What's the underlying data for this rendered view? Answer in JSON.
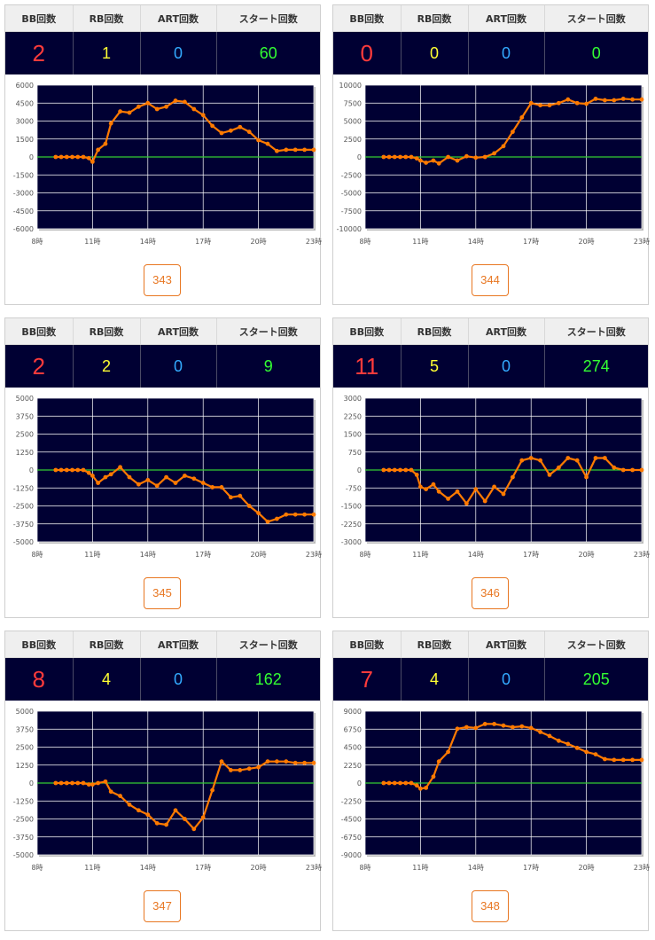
{
  "header": {
    "bb": "BB回数",
    "rb": "RB回数",
    "art": "ART回数",
    "start": "スタート回数"
  },
  "x_tick_labels": [
    "8時",
    "11時",
    "14時",
    "17時",
    "20時",
    "23時"
  ],
  "colors": {
    "plot_bg": "#000033",
    "line": "#ff7a00",
    "zero_line": "#33cc33",
    "grid": "#ffffff"
  },
  "machines": [
    {
      "number": "343",
      "bb": "2",
      "rb": "1",
      "art": "0",
      "start": "60",
      "chart_data": {
        "type": "line",
        "x_range": [
          8,
          23
        ],
        "ylim": [
          -6000,
          6000
        ],
        "y_ticks": [
          6000,
          4500,
          3000,
          1500,
          0,
          -1500,
          -3000,
          -4500,
          -6000
        ],
        "points": [
          [
            9,
            0
          ],
          [
            9.3,
            0
          ],
          [
            9.6,
            0
          ],
          [
            9.9,
            0
          ],
          [
            10.2,
            0
          ],
          [
            10.5,
            0
          ],
          [
            10.8,
            -100
          ],
          [
            11,
            -400
          ],
          [
            11.3,
            600
          ],
          [
            11.7,
            1100
          ],
          [
            12,
            2800
          ],
          [
            12.5,
            3800
          ],
          [
            13,
            3700
          ],
          [
            13.5,
            4200
          ],
          [
            14,
            4500
          ],
          [
            14.5,
            4000
          ],
          [
            15,
            4200
          ],
          [
            15.5,
            4700
          ],
          [
            16,
            4600
          ],
          [
            16.5,
            4000
          ],
          [
            17,
            3500
          ],
          [
            17.5,
            2600
          ],
          [
            18,
            2000
          ],
          [
            18.5,
            2200
          ],
          [
            19,
            2500
          ],
          [
            19.5,
            2100
          ],
          [
            20,
            1400
          ],
          [
            20.5,
            1100
          ],
          [
            21,
            500
          ],
          [
            21.5,
            600
          ],
          [
            22,
            600
          ],
          [
            22.5,
            600
          ],
          [
            23,
            600
          ]
        ]
      }
    },
    {
      "number": "344",
      "bb": "0",
      "rb": "0",
      "art": "0",
      "start": "0",
      "chart_data": {
        "type": "line",
        "x_range": [
          8,
          23
        ],
        "ylim": [
          -10000,
          10000
        ],
        "y_ticks": [
          10000,
          7500,
          5000,
          2500,
          0,
          -2500,
          -5000,
          -7500,
          -10000
        ],
        "points": [
          [
            9,
            0
          ],
          [
            9.3,
            0
          ],
          [
            9.6,
            0
          ],
          [
            9.9,
            0
          ],
          [
            10.2,
            0
          ],
          [
            10.5,
            0
          ],
          [
            10.8,
            -200
          ],
          [
            11,
            -500
          ],
          [
            11.3,
            -800
          ],
          [
            11.7,
            -500
          ],
          [
            12,
            -900
          ],
          [
            12.5,
            0
          ],
          [
            13,
            -500
          ],
          [
            13.5,
            100
          ],
          [
            14,
            -100
          ],
          [
            14.5,
            0
          ],
          [
            15,
            500
          ],
          [
            15.5,
            1500
          ],
          [
            16,
            3500
          ],
          [
            16.5,
            5500
          ],
          [
            17,
            7500
          ],
          [
            17.5,
            7200
          ],
          [
            18,
            7200
          ],
          [
            18.5,
            7500
          ],
          [
            19,
            8000
          ],
          [
            19.5,
            7500
          ],
          [
            20,
            7400
          ],
          [
            20.5,
            8100
          ],
          [
            21,
            7900
          ],
          [
            21.5,
            7900
          ],
          [
            22,
            8100
          ],
          [
            22.5,
            8000
          ],
          [
            23,
            8000
          ]
        ]
      }
    },
    {
      "number": "345",
      "bb": "2",
      "rb": "2",
      "art": "0",
      "start": "9",
      "chart_data": {
        "type": "line",
        "x_range": [
          8,
          23
        ],
        "ylim": [
          -5000,
          5000
        ],
        "y_ticks": [
          5000,
          3750,
          2500,
          1250,
          0,
          -1250,
          -2500,
          -3750,
          -5000
        ],
        "points": [
          [
            9,
            0
          ],
          [
            9.3,
            0
          ],
          [
            9.6,
            0
          ],
          [
            9.9,
            0
          ],
          [
            10.2,
            0
          ],
          [
            10.5,
            0
          ],
          [
            10.8,
            -200
          ],
          [
            11,
            -400
          ],
          [
            11.3,
            -900
          ],
          [
            11.7,
            -500
          ],
          [
            12,
            -300
          ],
          [
            12.5,
            200
          ],
          [
            13,
            -500
          ],
          [
            13.5,
            -1000
          ],
          [
            14,
            -700
          ],
          [
            14.5,
            -1100
          ],
          [
            15,
            -500
          ],
          [
            15.5,
            -900
          ],
          [
            16,
            -400
          ],
          [
            16.5,
            -600
          ],
          [
            17,
            -900
          ],
          [
            17.5,
            -1200
          ],
          [
            18,
            -1200
          ],
          [
            18.5,
            -1900
          ],
          [
            19,
            -1800
          ],
          [
            19.5,
            -2500
          ],
          [
            20,
            -3000
          ],
          [
            20.5,
            -3600
          ],
          [
            21,
            -3400
          ],
          [
            21.5,
            -3100
          ],
          [
            22,
            -3100
          ],
          [
            22.5,
            -3100
          ],
          [
            23,
            -3100
          ]
        ]
      }
    },
    {
      "number": "346",
      "bb": "11",
      "rb": "5",
      "art": "0",
      "start": "274",
      "chart_data": {
        "type": "line",
        "x_range": [
          8,
          23
        ],
        "ylim": [
          -3000,
          3000
        ],
        "y_ticks": [
          3000,
          2250,
          1500,
          750,
          0,
          -750,
          -1500,
          -2250,
          -3000
        ],
        "points": [
          [
            9,
            0
          ],
          [
            9.3,
            0
          ],
          [
            9.6,
            0
          ],
          [
            9.9,
            0
          ],
          [
            10.2,
            0
          ],
          [
            10.5,
            0
          ],
          [
            10.8,
            -200
          ],
          [
            11,
            -700
          ],
          [
            11.3,
            -800
          ],
          [
            11.7,
            -600
          ],
          [
            12,
            -900
          ],
          [
            12.5,
            -1200
          ],
          [
            13,
            -900
          ],
          [
            13.5,
            -1400
          ],
          [
            14,
            -800
          ],
          [
            14.5,
            -1300
          ],
          [
            15,
            -700
          ],
          [
            15.5,
            -1000
          ],
          [
            16,
            -300
          ],
          [
            16.5,
            400
          ],
          [
            17,
            500
          ],
          [
            17.5,
            400
          ],
          [
            18,
            -200
          ],
          [
            18.5,
            100
          ],
          [
            19,
            500
          ],
          [
            19.5,
            400
          ],
          [
            20,
            -300
          ],
          [
            20.5,
            500
          ],
          [
            21,
            500
          ],
          [
            21.5,
            100
          ],
          [
            22,
            0
          ],
          [
            22.5,
            0
          ],
          [
            23,
            0
          ]
        ]
      }
    },
    {
      "number": "347",
      "bb": "8",
      "rb": "4",
      "art": "0",
      "start": "162",
      "chart_data": {
        "type": "line",
        "x_range": [
          8,
          23
        ],
        "ylim": [
          -5000,
          5000
        ],
        "y_ticks": [
          5000,
          3750,
          2500,
          1250,
          0,
          -1250,
          -2500,
          -3750,
          -5000
        ],
        "points": [
          [
            9,
            0
          ],
          [
            9.3,
            0
          ],
          [
            9.6,
            0
          ],
          [
            9.9,
            0
          ],
          [
            10.2,
            0
          ],
          [
            10.5,
            0
          ],
          [
            10.8,
            -100
          ],
          [
            11,
            -100
          ],
          [
            11.3,
            0
          ],
          [
            11.7,
            100
          ],
          [
            12,
            -600
          ],
          [
            12.5,
            -900
          ],
          [
            13,
            -1500
          ],
          [
            13.5,
            -1900
          ],
          [
            14,
            -2200
          ],
          [
            14.5,
            -2800
          ],
          [
            15,
            -2900
          ],
          [
            15.5,
            -1900
          ],
          [
            16,
            -2500
          ],
          [
            16.5,
            -3200
          ],
          [
            17,
            -2400
          ],
          [
            17.5,
            -500
          ],
          [
            18,
            1500
          ],
          [
            18.5,
            900
          ],
          [
            19,
            900
          ],
          [
            19.5,
            1000
          ],
          [
            20,
            1100
          ],
          [
            20.5,
            1500
          ],
          [
            21,
            1500
          ],
          [
            21.5,
            1500
          ],
          [
            22,
            1400
          ],
          [
            22.5,
            1400
          ],
          [
            23,
            1400
          ]
        ]
      }
    },
    {
      "number": "348",
      "bb": "7",
      "rb": "4",
      "art": "0",
      "start": "205",
      "chart_data": {
        "type": "line",
        "x_range": [
          8,
          23
        ],
        "ylim": [
          -9000,
          9000
        ],
        "y_ticks": [
          9000,
          6750,
          4500,
          2250,
          0,
          -2250,
          -4500,
          -6750,
          -9000
        ],
        "points": [
          [
            9,
            0
          ],
          [
            9.3,
            0
          ],
          [
            9.6,
            0
          ],
          [
            9.9,
            0
          ],
          [
            10.2,
            0
          ],
          [
            10.5,
            0
          ],
          [
            10.8,
            -300
          ],
          [
            11,
            -700
          ],
          [
            11.3,
            -600
          ],
          [
            11.7,
            800
          ],
          [
            12,
            2700
          ],
          [
            12.5,
            3900
          ],
          [
            13,
            6800
          ],
          [
            13.5,
            7000
          ],
          [
            14,
            6900
          ],
          [
            14.5,
            7400
          ],
          [
            15,
            7400
          ],
          [
            15.5,
            7200
          ],
          [
            16,
            7000
          ],
          [
            16.5,
            7100
          ],
          [
            17,
            6900
          ],
          [
            17.5,
            6400
          ],
          [
            18,
            5900
          ],
          [
            18.5,
            5300
          ],
          [
            19,
            4900
          ],
          [
            19.5,
            4400
          ],
          [
            20,
            3900
          ],
          [
            20.5,
            3600
          ],
          [
            21,
            3000
          ],
          [
            21.5,
            2900
          ],
          [
            22,
            2900
          ],
          [
            22.5,
            2900
          ],
          [
            23,
            2900
          ]
        ]
      }
    }
  ]
}
